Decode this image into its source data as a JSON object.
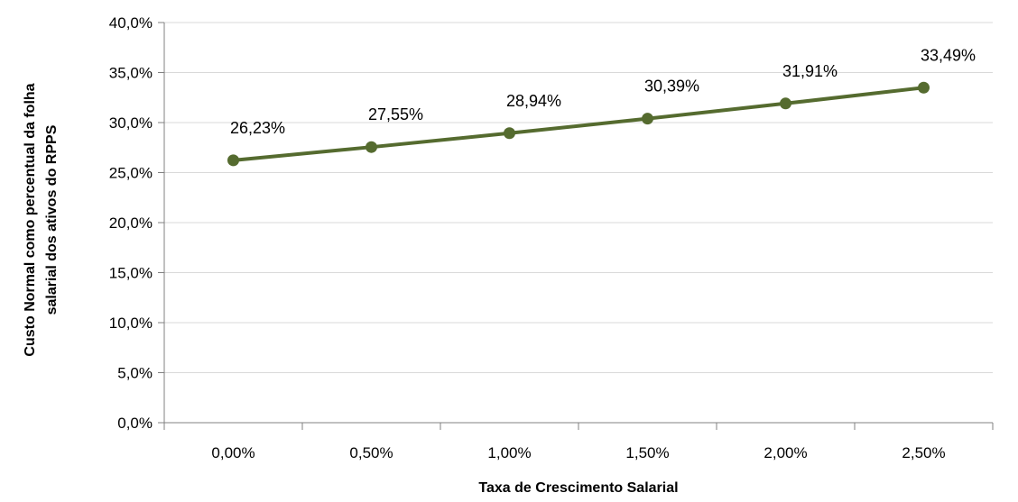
{
  "chart_data": {
    "type": "line",
    "title": "",
    "xlabel": "Taxa de Crescimento Salarial",
    "ylabel_lines": [
      "Custo Normal como percentual da folha",
      "salarial dos ativos do RPPS"
    ],
    "categories": [
      "0,00%",
      "0,50%",
      "1,00%",
      "1,50%",
      "2,00%",
      "2,50%"
    ],
    "series": [
      {
        "values": [
          26.23,
          27.55,
          28.94,
          30.39,
          31.91,
          33.49
        ],
        "labels": [
          "26,23%",
          "27,55%",
          "28,94%",
          "30,39%",
          "31,91%",
          "33,49%"
        ],
        "color": "#556b2f"
      }
    ],
    "ylim": [
      0,
      40
    ],
    "yticks": [
      0,
      5,
      10,
      15,
      20,
      25,
      30,
      35,
      40
    ],
    "ytick_labels": [
      "0,0%",
      "5,0%",
      "10,0%",
      "15,0%",
      "20,0%",
      "25,0%",
      "30,0%",
      "35,0%",
      "40,0%"
    ],
    "grid": true,
    "legend": "none"
  }
}
